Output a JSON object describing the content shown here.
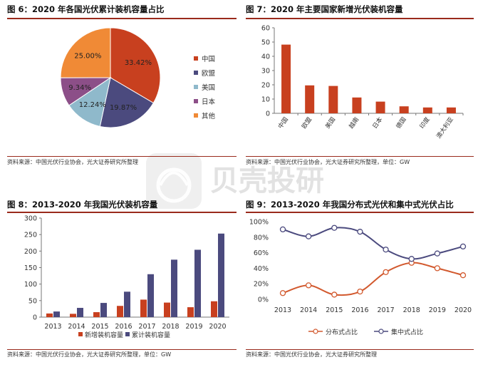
{
  "watermark": {
    "text": "贝壳投研"
  },
  "chart_data": [
    {
      "type": "pie",
      "title": "图 6：2020 年各国光伏累计装机容量占比",
      "source": "资料来源：中国光伏行业协会，光大证券研究所整理",
      "slices": [
        {
          "label": "中国",
          "value": 33.42,
          "display": "33.42%",
          "color": "#C8401F"
        },
        {
          "label": "欧盟",
          "value": 19.87,
          "display": "19.87%",
          "color": "#4B4A7E"
        },
        {
          "label": "美国",
          "value": 12.24,
          "display": "12.24%",
          "color": "#8FB9CB"
        },
        {
          "label": "日本",
          "value": 9.34,
          "display": "9.34%",
          "color": "#8C4F88"
        },
        {
          "label": "其他",
          "value": 25.0,
          "display": "25.00%",
          "color": "#F08A36"
        }
      ],
      "legend_position": "right"
    },
    {
      "type": "bar",
      "title": "图 7：2020 年主要国家新增光伏装机容量",
      "source": "资料来源：中国光伏行业协会，光大证券研究所整理，单位：GW",
      "categories": [
        "中国",
        "欧盟",
        "美国",
        "越南",
        "日本",
        "德国",
        "印度",
        "澳大利亚"
      ],
      "values": [
        48.2,
        19.6,
        19.2,
        11.1,
        8.2,
        4.9,
        4.1,
        4.1
      ],
      "color": "#C8401F",
      "ylim": [
        0,
        60
      ],
      "yticks": [
        0,
        10,
        20,
        30,
        40,
        50,
        60
      ],
      "grid": false
    },
    {
      "type": "bar",
      "title": "图 8：2013-2020 年我国光伏装机容量",
      "source": "资料来源：中国光伏行业协会，光大证券研究所整理，单位：GW",
      "categories": [
        "2013",
        "2014",
        "2015",
        "2016",
        "2017",
        "2018",
        "2019",
        "2020"
      ],
      "series": [
        {
          "name": "新增装机容量",
          "color": "#C8401F",
          "values": [
            11,
            10,
            15,
            34,
            53,
            44,
            30,
            48
          ]
        },
        {
          "name": "累计装机容量",
          "color": "#4B4A7E",
          "values": [
            17,
            28,
            43,
            77,
            130,
            174,
            204,
            253
          ]
        }
      ],
      "ylim": [
        0,
        300
      ],
      "yticks": [
        0,
        50,
        100,
        150,
        200,
        250,
        300
      ],
      "legend_position": "bottom",
      "grid": false
    },
    {
      "type": "line",
      "title": "图 9：2013-2020 年我国分布式光伏和集中式光伏占比",
      "source": "资料来源：中国光伏行业协会，光大证券研究所整理",
      "x": [
        "2013",
        "2014",
        "2015",
        "2016",
        "2017",
        "2018",
        "2019",
        "2020"
      ],
      "series": [
        {
          "name": "分布式占比",
          "color": "#D2592E",
          "values": [
            8,
            18,
            6,
            10,
            35,
            47,
            40,
            31
          ]
        },
        {
          "name": "集中式占比",
          "color": "#4B4A7E",
          "values": [
            90,
            81,
            92,
            87,
            64,
            52,
            59,
            68
          ]
        }
      ],
      "ylim": [
        0,
        100
      ],
      "yticks": [
        "0%",
        "20%",
        "40%",
        "60%",
        "80%",
        "100%"
      ],
      "legend_position": "bottom",
      "grid": false
    }
  ]
}
